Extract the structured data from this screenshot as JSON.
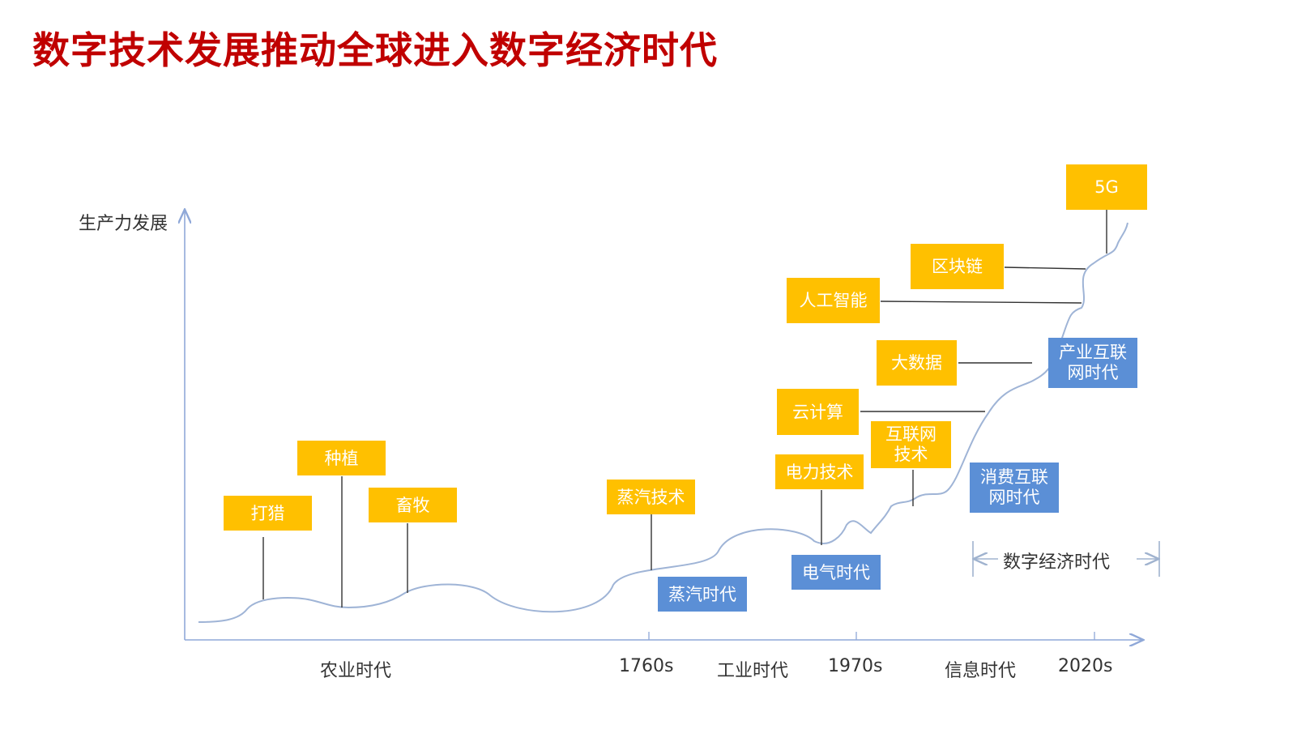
{
  "title": "数字技术发展推动全球进入数字经济时代",
  "y_axis_label": "生产力发展",
  "x_axis": {
    "eras": [
      "农业时代",
      "工业时代",
      "信息时代"
    ],
    "years": [
      "1760s",
      "1970s",
      "2020s"
    ]
  },
  "technologies": {
    "hunting": "打猎",
    "planting": "种植",
    "herding": "畜牧",
    "steam_tech": "蒸汽技术",
    "electric_tech": "电力技术",
    "internet_tech": "互联网技术",
    "cloud": "云计算",
    "big_data": "大数据",
    "ai": "人工智能",
    "blockchain": "区块链",
    "five_g": "5G"
  },
  "eras": {
    "steam_age": "蒸汽时代",
    "electric_age": "电气时代",
    "consumer_internet": "消费互联网时代",
    "industrial_internet": "产业互联网时代"
  },
  "digital_economy_span": "数字经济时代",
  "colors": {
    "title": "#c00000",
    "tech_box": "#ffc000",
    "era_box": "#5b8fd6",
    "axis": "#8fa8d8",
    "curve": "#9fb4d6"
  }
}
